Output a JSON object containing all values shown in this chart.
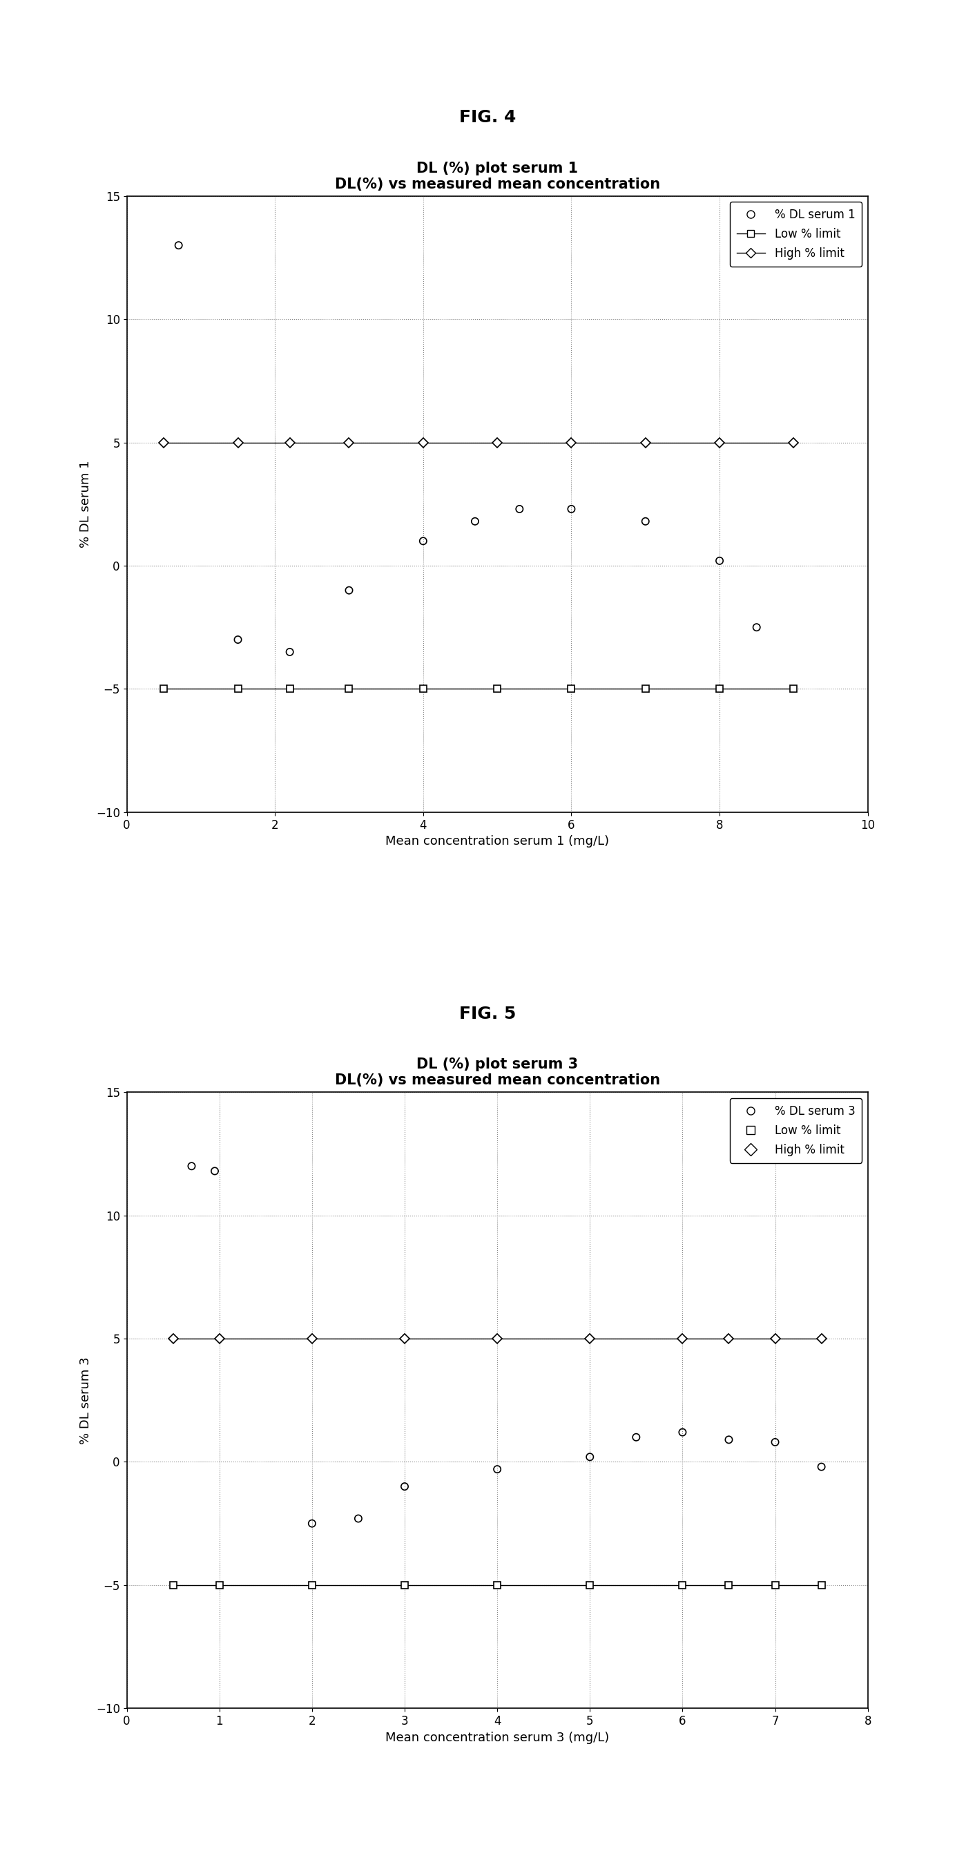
{
  "fig4": {
    "title_line1": "DL (%) plot serum 1",
    "title_line2": "DL(%) vs measured mean concentration",
    "xlabel": "Mean concentration serum 1 (mg/L)",
    "ylabel": "% DL serum 1",
    "xlim": [
      0,
      10
    ],
    "ylim": [
      -10,
      15
    ],
    "yticks": [
      -10,
      -5,
      0,
      5,
      10,
      15
    ],
    "xticks": [
      0,
      2,
      4,
      6,
      8,
      10
    ],
    "scatter_x": [
      0.7,
      1.5,
      2.2,
      3.0,
      4.0,
      4.7,
      5.3,
      6.0,
      7.0,
      8.0,
      8.5
    ],
    "scatter_y": [
      13.0,
      -3.0,
      -3.5,
      -1.0,
      1.0,
      1.8,
      2.3,
      2.3,
      1.8,
      0.2,
      -2.5
    ],
    "low_x": [
      0.5,
      1.5,
      2.2,
      3.0,
      4.0,
      5.0,
      6.0,
      7.0,
      8.0,
      9.0
    ],
    "low_y": [
      -5,
      -5,
      -5,
      -5,
      -5,
      -5,
      -5,
      -5,
      -5,
      -5
    ],
    "high_x": [
      0.5,
      1.5,
      2.2,
      3.0,
      4.0,
      5.0,
      6.0,
      7.0,
      8.0,
      9.0
    ],
    "high_y": [
      5,
      5,
      5,
      5,
      5,
      5,
      5,
      5,
      5,
      5
    ],
    "legend_labels": [
      "% DL serum 1",
      "Low % limit",
      "High % limit"
    ],
    "legend_has_lines": true
  },
  "fig5": {
    "title_line1": "DL (%) plot serum 3",
    "title_line2": "DL(%) vs measured mean concentration",
    "xlabel": "Mean concentration serum 3 (mg/L)",
    "ylabel": "% DL serum 3",
    "xlim": [
      0,
      8
    ],
    "ylim": [
      -10,
      15
    ],
    "yticks": [
      -10,
      -5,
      0,
      5,
      10,
      15
    ],
    "xticks": [
      0,
      1,
      2,
      3,
      4,
      5,
      6,
      7,
      8
    ],
    "scatter_x": [
      0.7,
      0.95,
      2.0,
      2.5,
      3.0,
      4.0,
      5.0,
      5.5,
      6.0,
      6.5,
      7.0,
      7.5
    ],
    "scatter_y": [
      12.0,
      11.8,
      -2.5,
      -2.3,
      -1.0,
      -0.3,
      0.2,
      1.0,
      1.2,
      0.9,
      0.8,
      -0.2
    ],
    "low_x": [
      0.5,
      1.0,
      2.0,
      3.0,
      4.0,
      5.0,
      6.0,
      6.5,
      7.0,
      7.5
    ],
    "low_y": [
      -5,
      -5,
      -5,
      -5,
      -5,
      -5,
      -5,
      -5,
      -5,
      -5
    ],
    "high_x": [
      0.5,
      1.0,
      2.0,
      3.0,
      4.0,
      5.0,
      6.0,
      6.5,
      7.0,
      7.5
    ],
    "high_y": [
      5,
      5,
      5,
      5,
      5,
      5,
      5,
      5,
      5,
      5
    ],
    "legend_labels": [
      "% DL serum 3",
      "Low % limit",
      "High % limit"
    ],
    "legend_has_lines": false
  },
  "fig4_label": "FIG. 4",
  "fig5_label": "FIG. 5",
  "background_color": "#ffffff",
  "grid_color": "#888888",
  "line_color": "#000000",
  "title_fontsize": 15,
  "label_fontsize": 13,
  "tick_fontsize": 12,
  "legend_fontsize": 12
}
